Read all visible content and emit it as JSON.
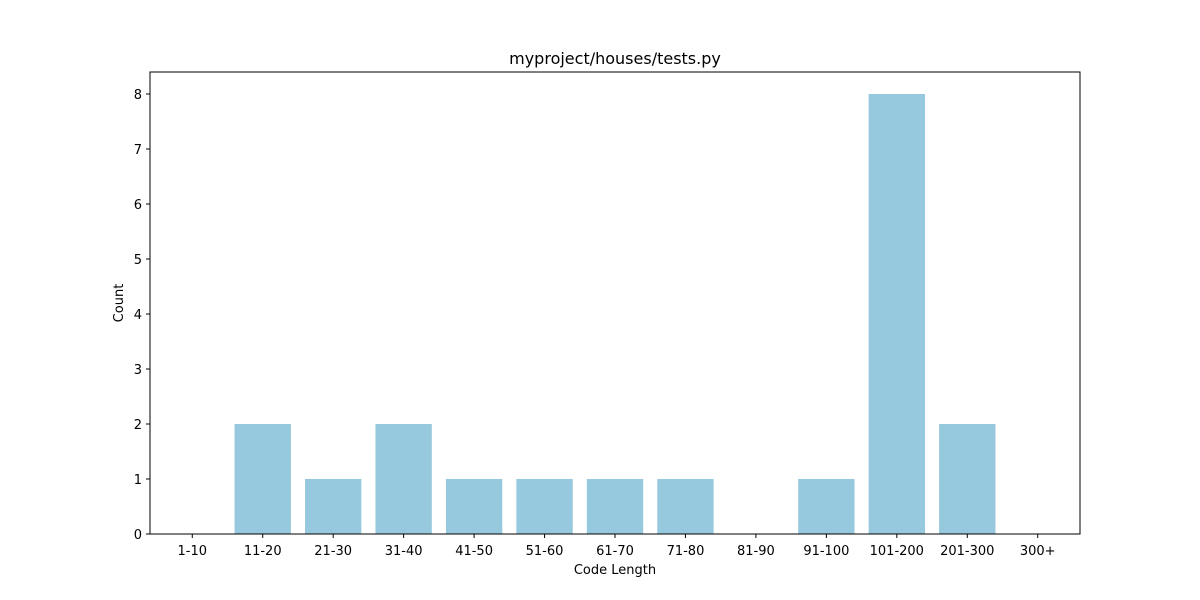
{
  "chart_data": {
    "type": "bar",
    "title": "myproject/houses/tests.py",
    "xlabel": "Code Length",
    "ylabel": "Count",
    "categories": [
      "1-10",
      "11-20",
      "21-30",
      "31-40",
      "41-50",
      "51-60",
      "61-70",
      "71-80",
      "81-90",
      "91-100",
      "101-200",
      "201-300",
      "300+"
    ],
    "values": [
      0,
      2,
      1,
      2,
      1,
      1,
      1,
      1,
      0,
      1,
      8,
      2,
      0
    ],
    "ylim": [
      0,
      8.4
    ],
    "yticks": [
      0,
      1,
      2,
      3,
      4,
      5,
      6,
      7,
      8
    ],
    "bar_color": "#96c9dd",
    "grid": false,
    "legend": "none"
  }
}
